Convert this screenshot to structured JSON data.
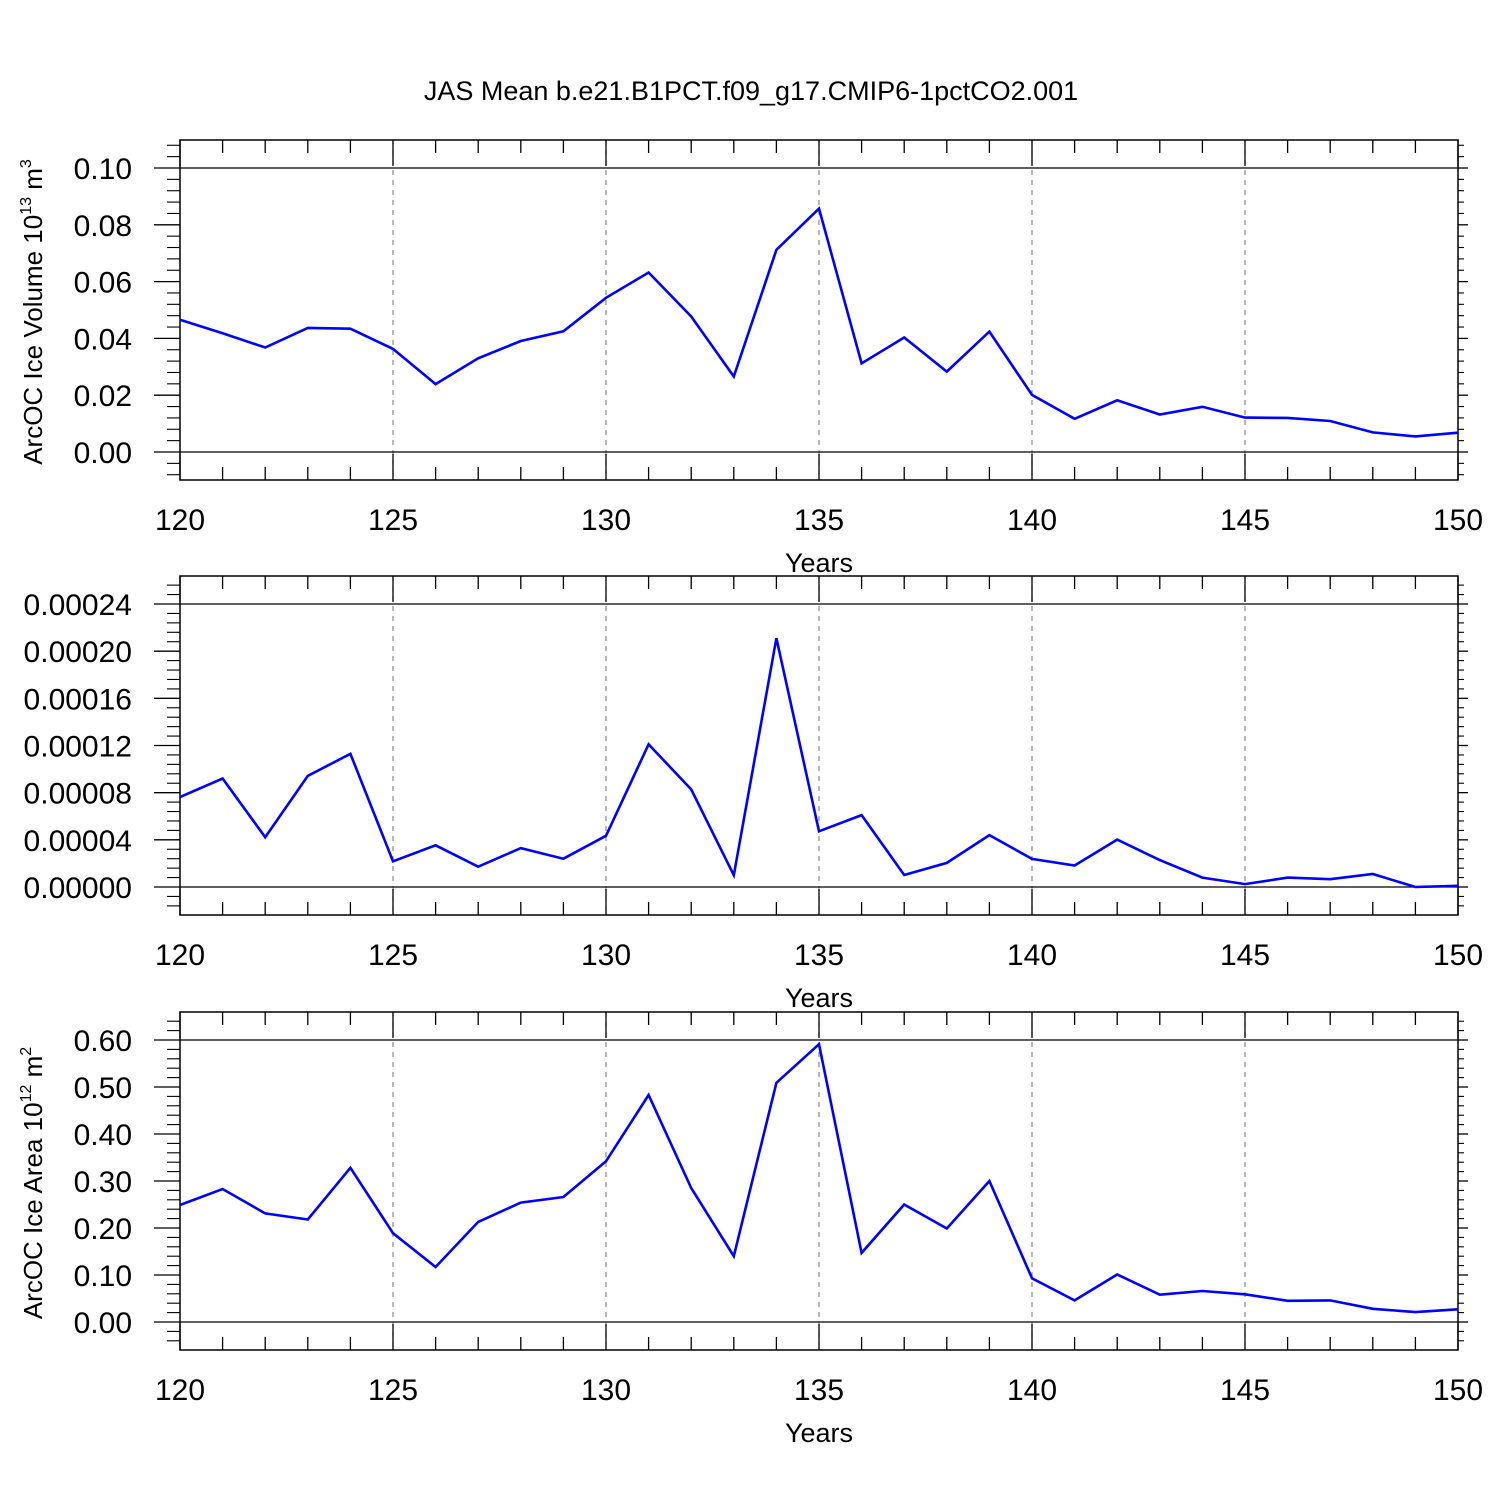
{
  "figure": {
    "title": "JAS Mean b.e21.B1PCT.f09_g17.CMIP6-1pctCO2.001"
  },
  "style": {
    "line_color": "#0000ff",
    "axis_color": "#000000",
    "grid_color": "#888888"
  },
  "chart_data": [
    {
      "type": "line",
      "ylabel": "ArcOC Ice Volume",
      "ylabel_unit_prefix": "10",
      "ylabel_unit_exp": "13",
      "ylabel_unit_suffix": "m",
      "ylabel_unit_suffix_exp": "3",
      "xlabel": "Years",
      "xlim": [
        120,
        150
      ],
      "ylim": [
        0,
        0.1
      ],
      "xticks": [
        120,
        125,
        130,
        135,
        140,
        145,
        150
      ],
      "yticks": [
        "0.00",
        "0.02",
        "0.04",
        "0.06",
        "0.08",
        "0.10"
      ],
      "x": [
        120,
        121,
        122,
        123,
        124,
        125,
        126,
        127,
        128,
        129,
        130,
        131,
        132,
        133,
        134,
        135,
        136,
        137,
        138,
        139,
        140,
        141,
        142,
        143,
        144,
        145,
        146,
        147,
        148,
        149,
        150
      ],
      "y": [
        0.0466,
        0.0418,
        0.0368,
        0.0437,
        0.0434,
        0.0363,
        0.0239,
        0.033,
        0.0391,
        0.0425,
        0.0543,
        0.0632,
        0.0477,
        0.0266,
        0.0712,
        0.0857,
        0.0312,
        0.0403,
        0.0283,
        0.0424,
        0.0201,
        0.0117,
        0.0182,
        0.0132,
        0.0159,
        0.0121,
        0.012,
        0.0109,
        0.0069,
        0.0055,
        0.0068
      ],
      "grid": "vertical dashed at major x ticks"
    },
    {
      "type": "line",
      "ylabel": "",
      "xlabel": "Years",
      "xlim": [
        120,
        150
      ],
      "ylim": [
        0,
        0.00024
      ],
      "xticks": [
        120,
        125,
        130,
        135,
        140,
        145,
        150
      ],
      "yticks": [
        "0.00000",
        "0.00004",
        "0.00008",
        "0.00012",
        "0.00016",
        "0.00020",
        "0.00024"
      ],
      "x": [
        120,
        121,
        122,
        123,
        124,
        125,
        126,
        127,
        128,
        129,
        130,
        131,
        132,
        133,
        134,
        135,
        136,
        137,
        138,
        139,
        140,
        141,
        142,
        143,
        144,
        145,
        146,
        147,
        148,
        149,
        150
      ],
      "y": [
        7.62e-05,
        9.2e-05,
        4.22e-05,
        9.42e-05,
        0.000113,
        2.18e-05,
        3.54e-05,
        1.72e-05,
        3.3e-05,
        2.4e-05,
        4.34e-05,
        0.000121,
        8.28e-05,
        1e-05,
        0.000211,
        4.72e-05,
        6.1e-05,
        1.02e-05,
        2.04e-05,
        4.4e-05,
        2.38e-05,
        1.82e-05,
        4.02e-05,
        2.28e-05,
        8e-06,
        2.5e-06,
        8e-06,
        6.6e-06,
        1.1e-05,
        0.0,
        1e-06
      ],
      "grid": "vertical dashed at major x ticks"
    },
    {
      "type": "line",
      "ylabel": "ArcOC Ice Area",
      "ylabel_unit_prefix": "10",
      "ylabel_unit_exp": "12",
      "ylabel_unit_suffix": "m",
      "ylabel_unit_suffix_exp": "2",
      "xlabel": "Years",
      "xlim": [
        120,
        150
      ],
      "ylim": [
        0,
        0.6
      ],
      "xticks": [
        120,
        125,
        130,
        135,
        140,
        145,
        150
      ],
      "yticks": [
        "0.00",
        "0.10",
        "0.20",
        "0.30",
        "0.40",
        "0.50",
        "0.60"
      ],
      "x": [
        120,
        121,
        122,
        123,
        124,
        125,
        126,
        127,
        128,
        129,
        130,
        131,
        132,
        133,
        134,
        135,
        136,
        137,
        138,
        139,
        140,
        141,
        142,
        143,
        144,
        145,
        146,
        147,
        148,
        149,
        150
      ],
      "y": [
        0.249,
        0.283,
        0.231,
        0.218,
        0.328,
        0.189,
        0.117,
        0.213,
        0.254,
        0.266,
        0.342,
        0.483,
        0.285,
        0.14,
        0.509,
        0.591,
        0.147,
        0.25,
        0.199,
        0.3,
        0.093,
        0.046,
        0.101,
        0.058,
        0.066,
        0.059,
        0.045,
        0.046,
        0.028,
        0.021,
        0.027
      ],
      "grid": "vertical dashed at major x ticks"
    }
  ]
}
